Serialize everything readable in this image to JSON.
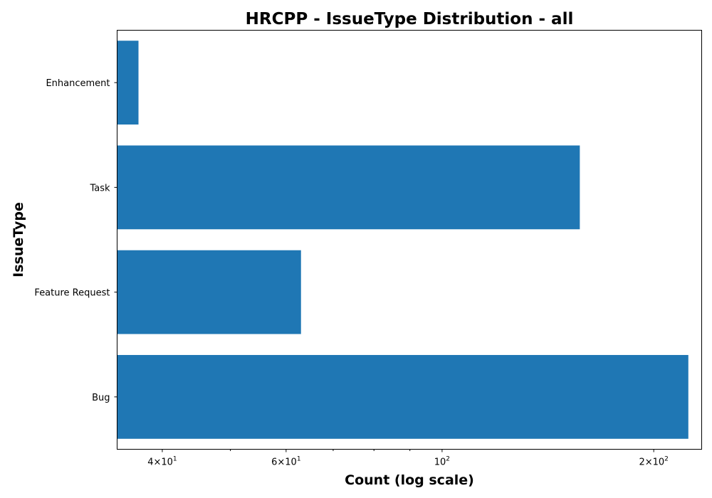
{
  "chart_data": {
    "type": "bar",
    "orientation": "horizontal",
    "title": "HRCPP - IssueType Distribution - all",
    "xlabel": "Count (log scale)",
    "ylabel": "IssueType",
    "x_scale": "log",
    "xlim": [
      34.5,
      234
    ],
    "grid": false,
    "bar_color": "#1f77b4",
    "categories": [
      "Bug",
      "Feature Request",
      "Task",
      "Enhancement"
    ],
    "values": [
      224,
      63,
      157,
      37
    ],
    "x_major_ticks": [
      {
        "value": 40,
        "mantissa": "4",
        "exponent": "1"
      },
      {
        "value": 60,
        "mantissa": "6",
        "exponent": "1"
      },
      {
        "value": 100,
        "mantissa": "",
        "exponent": "2"
      },
      {
        "value": 200,
        "mantissa": "2",
        "exponent": "2"
      }
    ],
    "x_minor_ticks": [
      50,
      70,
      80,
      90
    ]
  }
}
